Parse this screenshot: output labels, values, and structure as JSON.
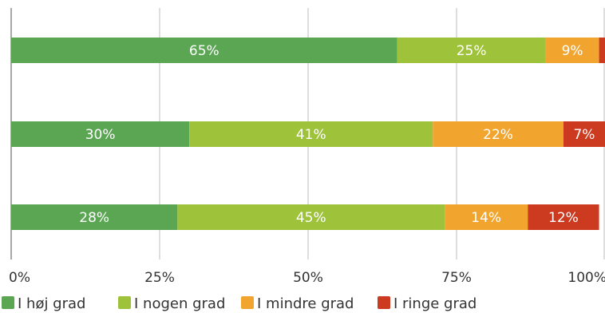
{
  "chart_data": {
    "type": "bar",
    "orientation": "horizontal",
    "stacked": true,
    "title": "",
    "xlabel": "",
    "ylabel": "",
    "xlim": [
      0,
      100
    ],
    "x_ticks": [
      {
        "value": 0,
        "label": "0%"
      },
      {
        "value": 25,
        "label": "25%"
      },
      {
        "value": 50,
        "label": "50%"
      },
      {
        "value": 75,
        "label": "75%"
      },
      {
        "value": 100,
        "label": "100%"
      }
    ],
    "grid": true,
    "legend_position": "bottom",
    "series": [
      {
        "name": "I høj grad",
        "color": "#5aa653",
        "values": [
          65,
          30,
          28
        ],
        "labels": [
          "65%",
          "30%",
          "28%"
        ]
      },
      {
        "name": "I nogen grad",
        "color": "#9ec33a",
        "values": [
          25,
          41,
          45
        ],
        "labels": [
          "25%",
          "41%",
          "45%"
        ]
      },
      {
        "name": "I mindre grad",
        "color": "#f2a52e",
        "values": [
          9,
          22,
          14
        ],
        "labels": [
          "9%",
          "22%",
          "14%"
        ]
      },
      {
        "name": "I ringe grad",
        "color": "#cc3a1f",
        "values": [
          1,
          7,
          12
        ],
        "labels": [
          "",
          "7%",
          "12%"
        ]
      }
    ]
  }
}
